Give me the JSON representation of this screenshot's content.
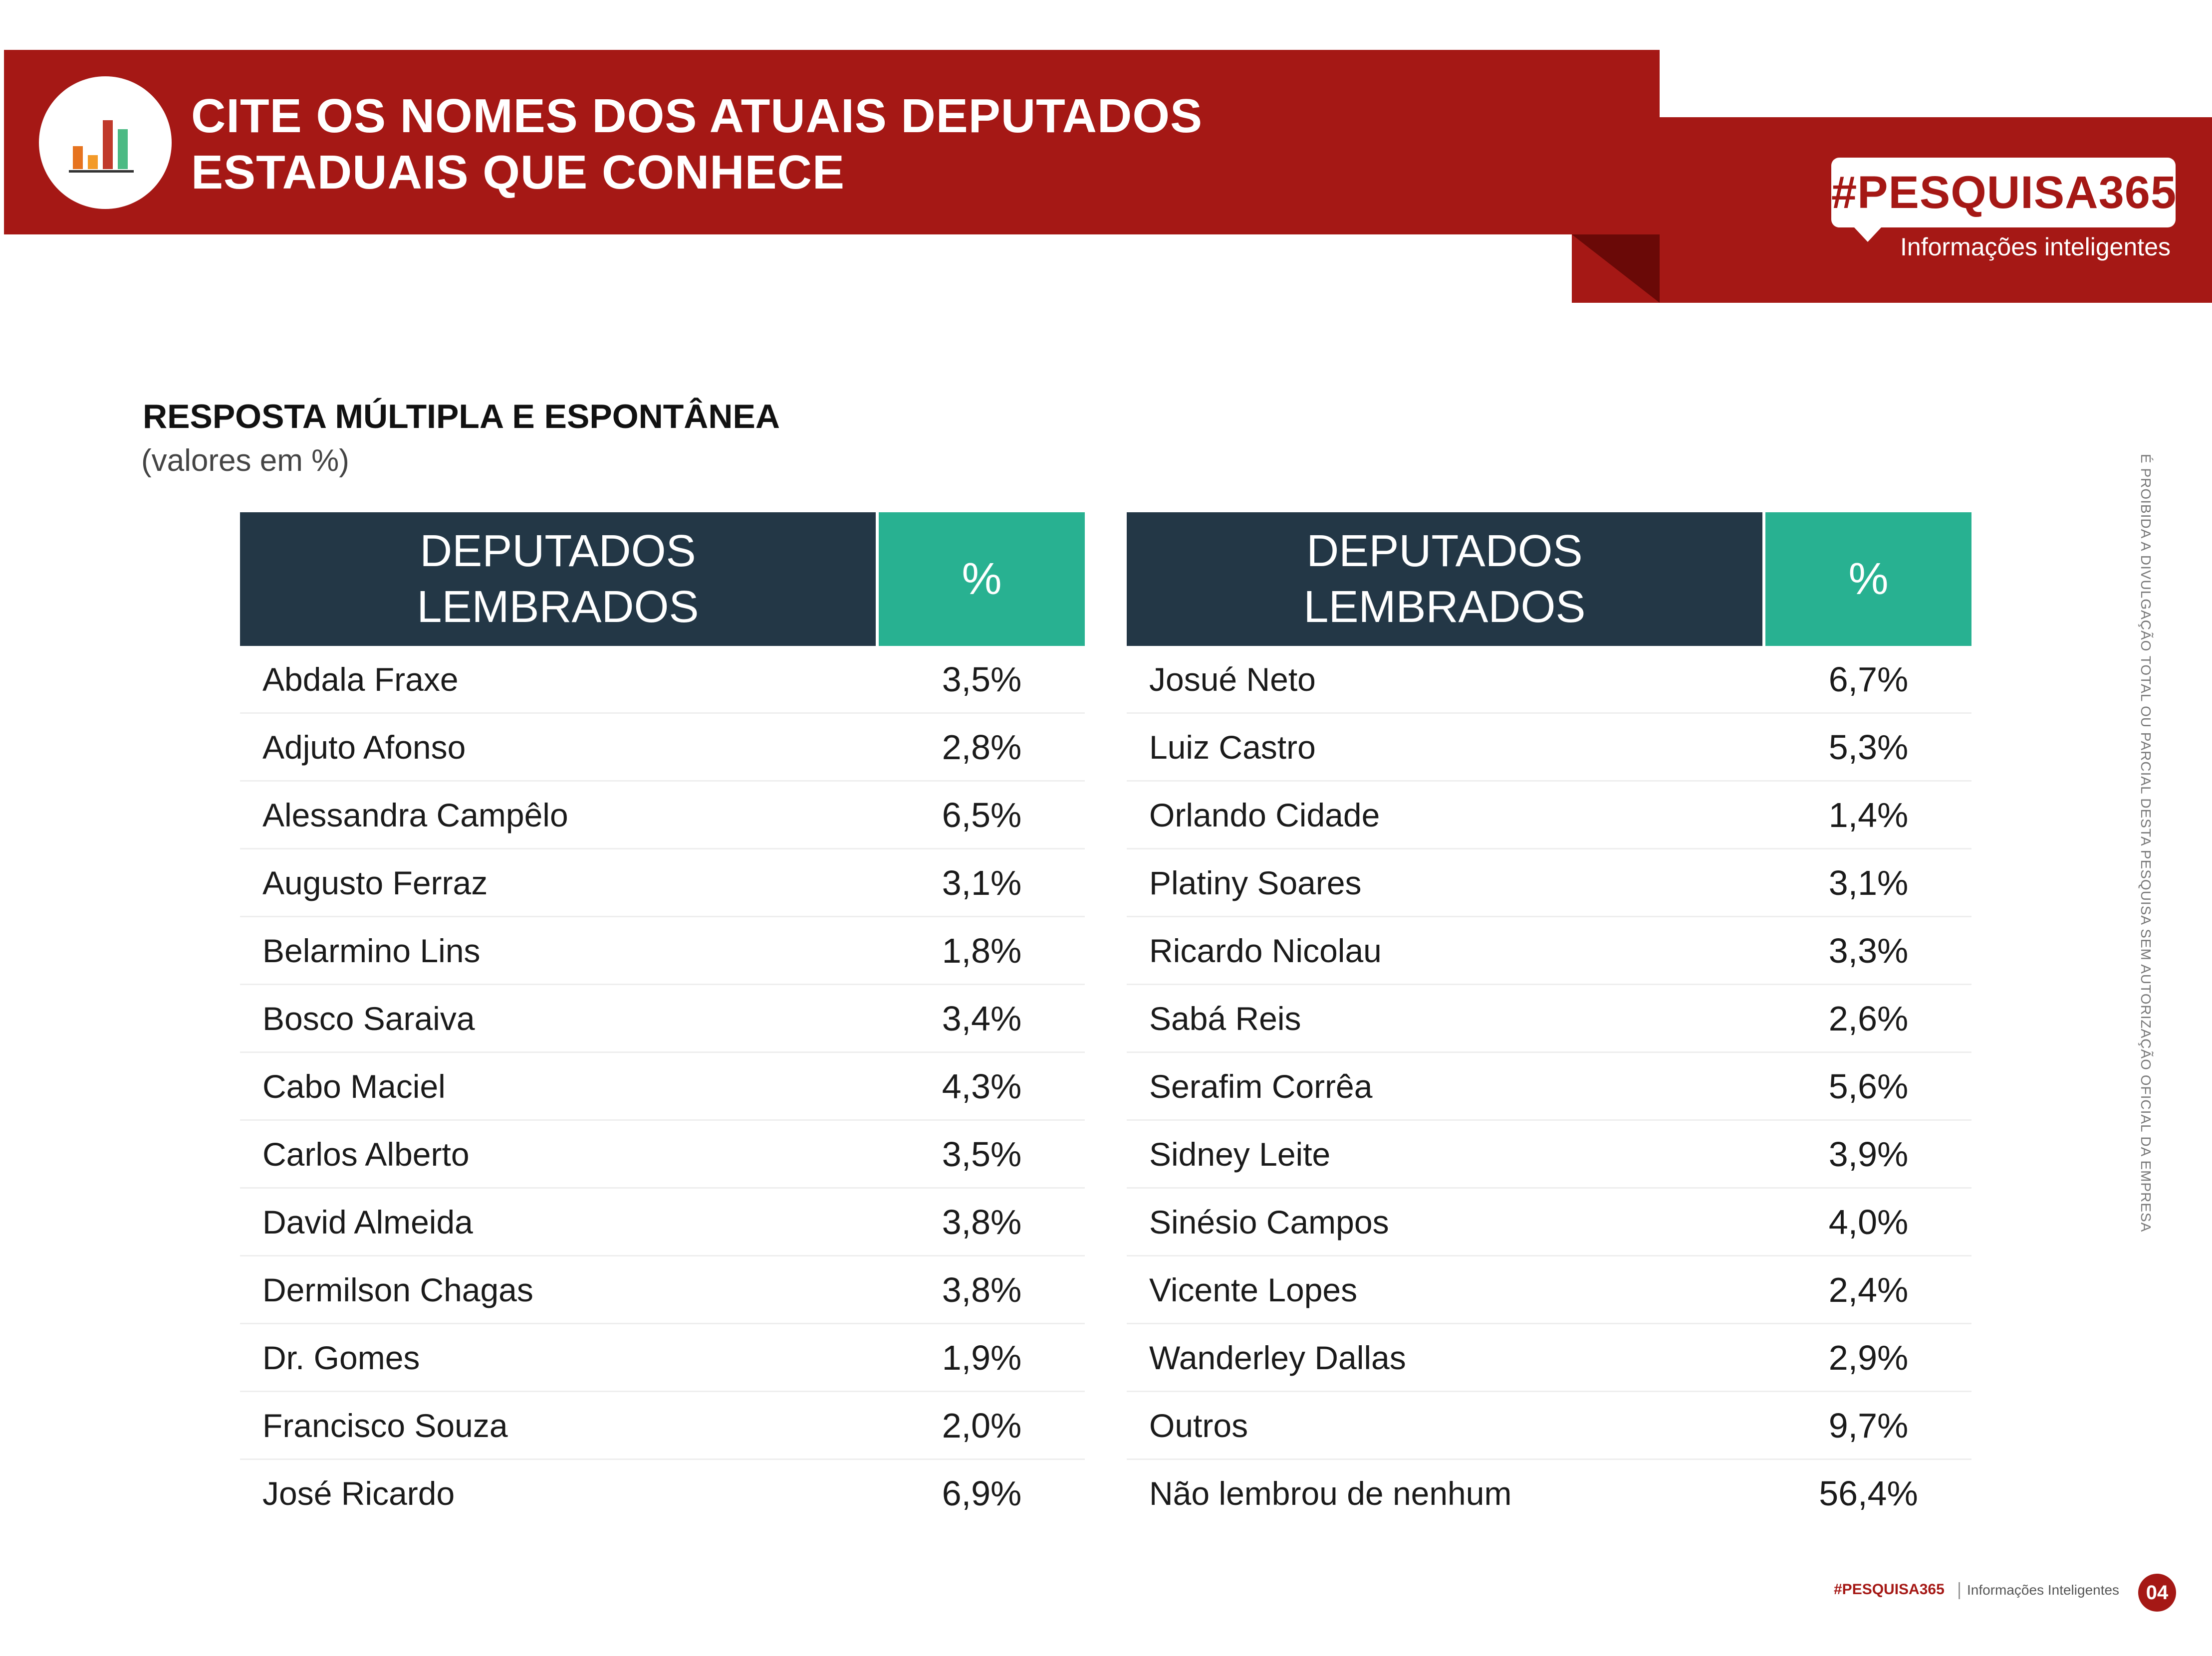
{
  "header": {
    "title_line1": "CITE OS NOMES DOS ATUAIS DEPUTADOS",
    "title_line2": "ESTADUAIS QUE CONHECE",
    "icon": "bar-chart-icon"
  },
  "brand": {
    "name": "#PESQUISA365",
    "tagline": "Informações inteligentes"
  },
  "section": {
    "title": "RESPOSTA MÚLTIPLA E ESPONTÂNEA",
    "subtitle": "(valores em %)"
  },
  "side_note": "É PROIBIDA A DIVULGAÇÃO TOTAL OU PARCIAL DESTA PESQUISA SEM AUTORIZAÇÃO OFICIAL DA EMPRESA",
  "table_left": {
    "header_name_line1": "DEPUTADOS",
    "header_name_line2": "LEMBRADOS",
    "header_pct": "%",
    "rows": [
      {
        "name": "Abdala Fraxe",
        "pct": "3,5%"
      },
      {
        "name": "Adjuto Afonso",
        "pct": "2,8%"
      },
      {
        "name": "Alessandra Campêlo",
        "pct": "6,5%"
      },
      {
        "name": "Augusto Ferraz",
        "pct": "3,1%"
      },
      {
        "name": "Belarmino Lins",
        "pct": "1,8%"
      },
      {
        "name": "Bosco Saraiva",
        "pct": "3,4%"
      },
      {
        "name": "Cabo Maciel",
        "pct": "4,3%"
      },
      {
        "name": "Carlos Alberto",
        "pct": "3,5%"
      },
      {
        "name": "David Almeida",
        "pct": "3,8%"
      },
      {
        "name": "Dermilson Chagas",
        "pct": "3,8%"
      },
      {
        "name": "Dr. Gomes",
        "pct": "1,9%"
      },
      {
        "name": "Francisco Souza",
        "pct": "2,0%"
      },
      {
        "name": "José Ricardo",
        "pct": "6,9%"
      }
    ]
  },
  "table_right": {
    "header_name_line1": "DEPUTADOS",
    "header_name_line2": "LEMBRADOS",
    "header_pct": "%",
    "rows": [
      {
        "name": "Josué Neto",
        "pct": "6,7%"
      },
      {
        "name": "Luiz Castro",
        "pct": "5,3%"
      },
      {
        "name": "Orlando Cidade",
        "pct": "1,4%"
      },
      {
        "name": "Platiny Soares",
        "pct": "3,1%"
      },
      {
        "name": "Ricardo Nicolau",
        "pct": "3,3%"
      },
      {
        "name": "Sabá Reis",
        "pct": "2,6%"
      },
      {
        "name": "Serafim Corrêa",
        "pct": "5,6%"
      },
      {
        "name": "Sidney Leite",
        "pct": "3,9%"
      },
      {
        "name": "Sinésio Campos",
        "pct": "4,0%"
      },
      {
        "name": "Vicente Lopes",
        "pct": "2,4%"
      },
      {
        "name": "Wanderley Dallas",
        "pct": "2,9%"
      },
      {
        "name": "Outros",
        "pct": "9,7%"
      },
      {
        "name": "Não lembrou de nenhum",
        "pct": "56,4%"
      }
    ]
  },
  "footer": {
    "brand": "#PESQUISA365",
    "tagline": "Informações Inteligentes",
    "page": "04"
  },
  "colors": {
    "brand_red": "#a51815",
    "header_navy": "#233746",
    "header_teal": "#28b191"
  }
}
